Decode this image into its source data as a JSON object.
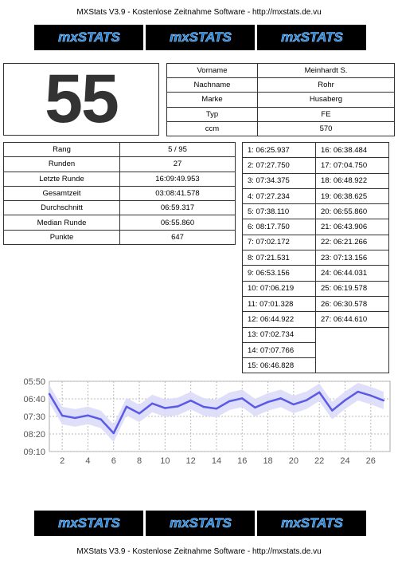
{
  "header": {
    "text": "MXStats V3.9 - Kostenlose Zeitnahme Software - http://mxstats.de.vu"
  },
  "footer": {
    "text": "MXStats V3.9 - Kostenlose Zeitnahme Software - http://mxstats.de.vu"
  },
  "logos": [
    "mxSTATS",
    "mxSTATS",
    "mxSTATS"
  ],
  "rider": {
    "number": "55",
    "fields": [
      {
        "label": "Vorname",
        "value": "Meinhardt S."
      },
      {
        "label": "Nachname",
        "value": "Rohr"
      },
      {
        "label": "Marke",
        "value": "Husaberg"
      },
      {
        "label": "Typ",
        "value": "FE"
      },
      {
        "label": "ccm",
        "value": "570"
      }
    ]
  },
  "stats": [
    {
      "label": "Rang",
      "value": "5 / 95"
    },
    {
      "label": "Runden",
      "value": "27"
    },
    {
      "label": "Letzte Runde",
      "value": "16:09:49.953"
    },
    {
      "label": "Gesamtzeit",
      "value": "03:08:41.578"
    },
    {
      "label": "Durchschnitt",
      "value": "06:59.317"
    },
    {
      "label": "Median Runde",
      "value": "06:55.860"
    },
    {
      "label": "Punkte",
      "value": "647"
    }
  ],
  "laps": [
    "1: 06:25.937",
    "2: 07:27.750",
    "3: 07:34.375",
    "4: 07:27.234",
    "5: 07:38.110",
    "6: 08:17.750",
    "7: 07:02.172",
    "8: 07:21.531",
    "9: 06:53.156",
    "10: 07:06.219",
    "11: 07:01.328",
    "12: 06:44.922",
    "13: 07:02.734",
    "14: 07:07.766",
    "15: 06:46.828",
    "16: 06:38.484",
    "17: 07:04.750",
    "18: 06:48.922",
    "19: 06:38.625",
    "20: 06:55.860",
    "21: 06:43.906",
    "22: 06:21.266",
    "23: 07:13.156",
    "24: 06:44.031",
    "25: 06:19.578",
    "26: 06:30.578",
    "27: 06:44.610"
  ],
  "chart_data": {
    "type": "line",
    "title": "",
    "xlabel": "",
    "ylabel": "",
    "y_axis": "lap time (seconds), inverted",
    "ylim": [
      350,
      550
    ],
    "yticks": [
      350,
      400,
      450,
      500,
      550
    ],
    "ytick_labels": [
      "05:50",
      "06:40",
      "07:30",
      "08:20",
      "09:10"
    ],
    "xticks": [
      2,
      4,
      6,
      8,
      10,
      12,
      14,
      16,
      18,
      20,
      22,
      24,
      26
    ],
    "x": [
      1,
      2,
      3,
      4,
      5,
      6,
      7,
      8,
      9,
      10,
      11,
      12,
      13,
      14,
      15,
      16,
      17,
      18,
      19,
      20,
      21,
      22,
      23,
      24,
      25,
      26,
      27
    ],
    "series": [
      {
        "values": [
          385.9,
          447.8,
          454.4,
          447.2,
          458.1,
          497.8,
          422.2,
          441.5,
          413.2,
          426.2,
          421.3,
          404.9,
          422.7,
          427.8,
          406.8,
          398.5,
          424.8,
          408.9,
          398.6,
          415.9,
          403.9,
          381.3,
          433.2,
          404.0,
          379.6,
          390.6,
          404.6
        ],
        "band": 25,
        "color": "#5a5ae6",
        "band_color": "#dcdcf8"
      }
    ],
    "grid": true,
    "legend": "none"
  }
}
